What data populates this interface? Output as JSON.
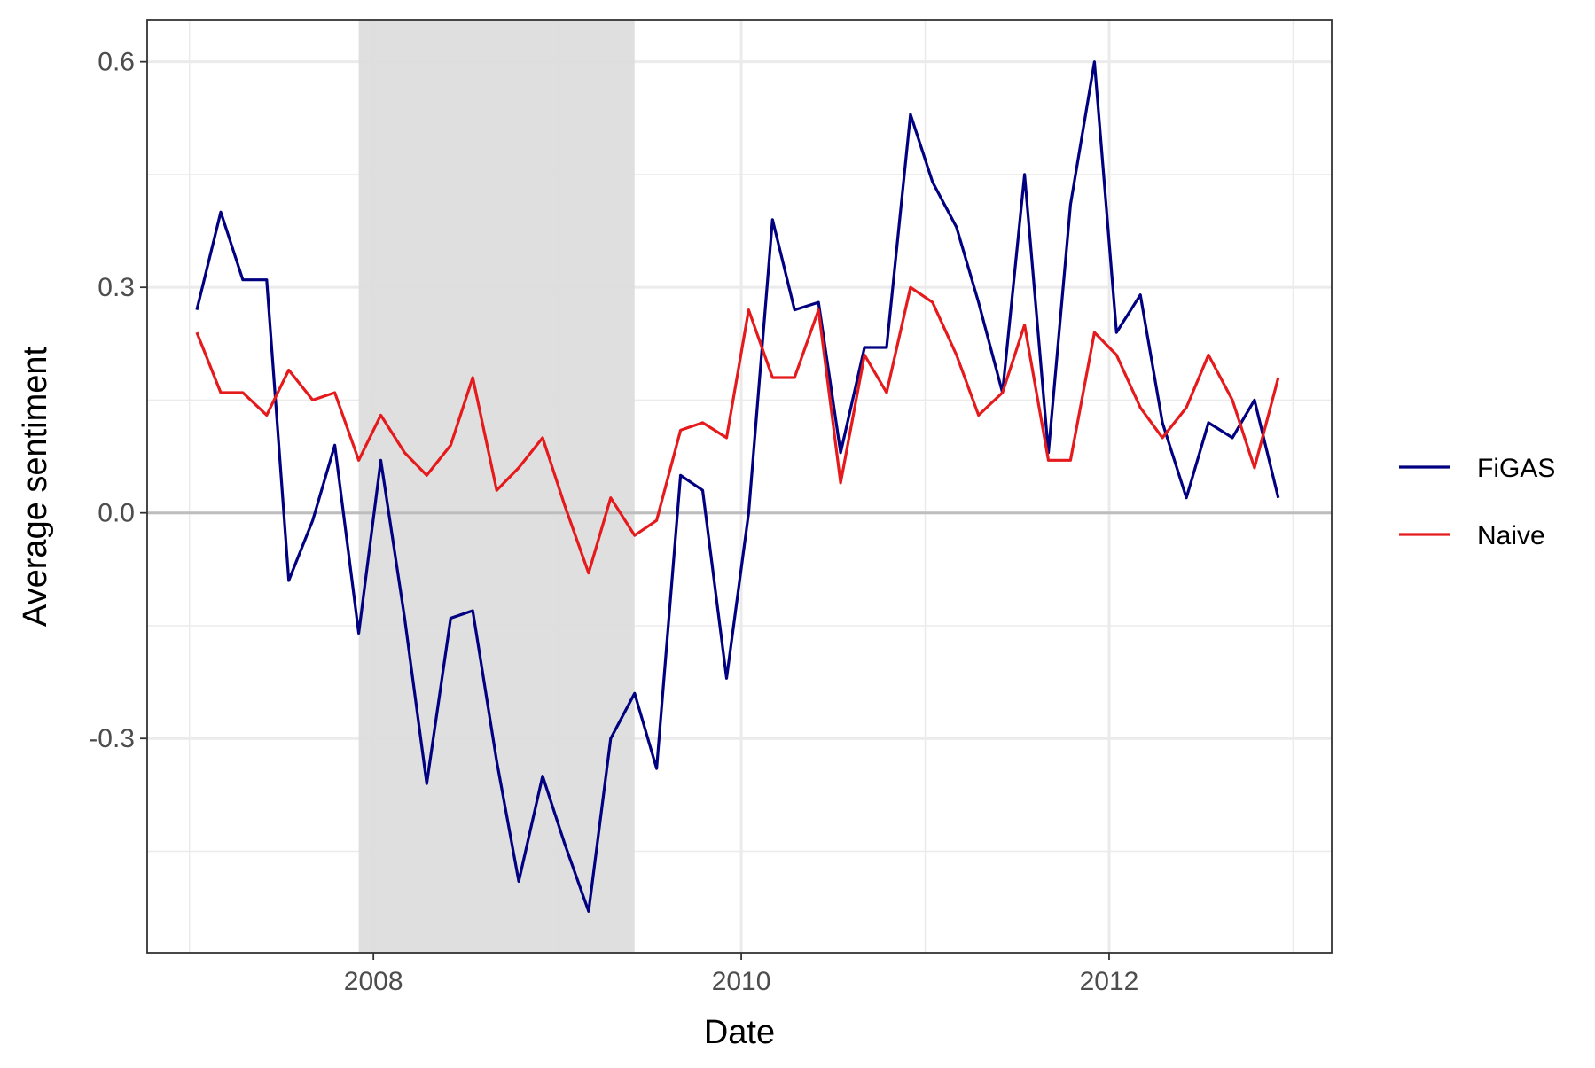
{
  "chart_data": {
    "type": "line",
    "title": "",
    "xlabel": "Date",
    "ylabel": "Average sentiment",
    "x_tick_labels": [
      "2008",
      "2010",
      "2012"
    ],
    "x_ticks": [
      2008,
      2010,
      2012
    ],
    "y_tick_labels": [
      "-0.3",
      "0.0",
      "0.3",
      "0.6"
    ],
    "y_ticks": [
      -0.3,
      0.0,
      0.3,
      0.6
    ],
    "xlim": [
      2006.77,
      2013.21
    ],
    "ylim": [
      -0.585,
      0.655
    ],
    "reference_line_y": 0.0,
    "shaded_period": [
      2007.92,
      2009.42
    ],
    "grid": true,
    "legend_position": "right",
    "x": [
      2007.04,
      2007.17,
      2007.29,
      2007.42,
      2007.54,
      2007.67,
      2007.79,
      2007.92,
      2008.04,
      2008.17,
      2008.29,
      2008.42,
      2008.54,
      2008.67,
      2008.79,
      2008.92,
      2009.04,
      2009.17,
      2009.29,
      2009.42,
      2009.54,
      2009.67,
      2009.79,
      2009.92,
      2010.04,
      2010.17,
      2010.29,
      2010.42,
      2010.54,
      2010.67,
      2010.79,
      2010.92,
      2011.04,
      2011.17,
      2011.29,
      2011.42,
      2011.54,
      2011.67,
      2011.79,
      2011.92,
      2012.04,
      2012.17,
      2012.29,
      2012.42,
      2012.54,
      2012.67,
      2012.79,
      2012.92
    ],
    "series": [
      {
        "name": "FiGAS",
        "color": "#000080",
        "values": [
          0.27,
          0.4,
          0.31,
          0.31,
          -0.09,
          -0.01,
          0.09,
          -0.16,
          0.07,
          -0.14,
          -0.36,
          -0.14,
          -0.13,
          -0.33,
          -0.49,
          -0.35,
          -0.44,
          -0.53,
          -0.3,
          -0.24,
          -0.34,
          0.05,
          0.03,
          -0.22,
          0.0,
          0.39,
          0.27,
          0.28,
          0.08,
          0.22,
          0.22,
          0.53,
          0.44,
          0.38,
          0.28,
          0.16,
          0.45,
          0.08,
          0.41,
          0.6,
          0.24,
          0.29,
          0.12,
          0.02,
          0.12,
          0.1,
          0.15,
          0.02
        ]
      },
      {
        "name": "Naive",
        "color": "#e41a1c",
        "values": [
          0.24,
          0.16,
          0.16,
          0.13,
          0.19,
          0.15,
          0.16,
          0.07,
          0.13,
          0.08,
          0.05,
          0.09,
          0.18,
          0.03,
          0.06,
          0.1,
          0.01,
          -0.08,
          0.02,
          -0.03,
          -0.01,
          0.11,
          0.12,
          0.1,
          0.27,
          0.18,
          0.18,
          0.27,
          0.04,
          0.21,
          0.16,
          0.3,
          0.28,
          0.21,
          0.13,
          0.16,
          0.25,
          0.07,
          0.07,
          0.24,
          0.21,
          0.14,
          0.1,
          0.14,
          0.21,
          0.15,
          0.06,
          0.18
        ]
      }
    ],
    "colors": {
      "panel_border": "#333333",
      "grid": "#ebebeb",
      "reference_line": "#bdbdbd",
      "shade": "#dcdcdc"
    }
  }
}
